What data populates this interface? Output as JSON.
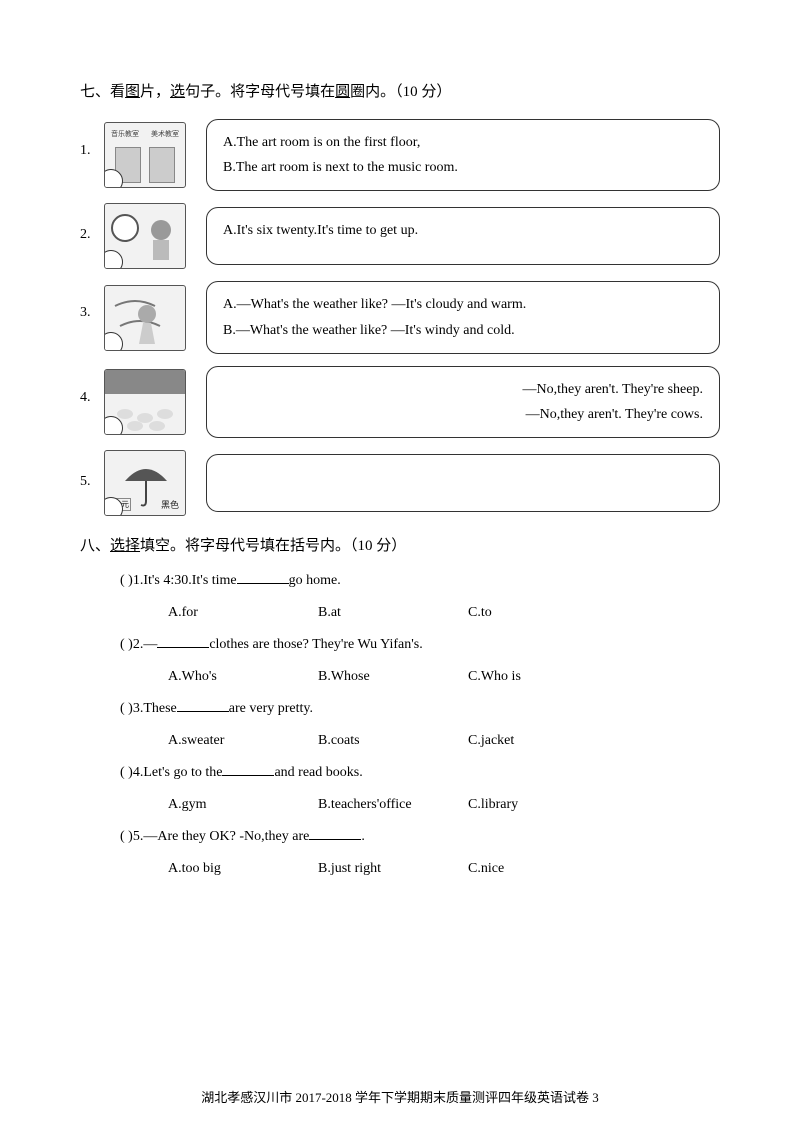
{
  "section7": {
    "title_prefix": "七、看",
    "title_u1": "图",
    "title_mid1": "片，",
    "title_u2": "选",
    "title_mid2": "句子。将字母代号填在",
    "title_u3": "圆",
    "title_mid3": "圈内。（10 分）",
    "items": [
      {
        "num": "1.",
        "image_labels": [
          "音乐教室",
          "美术教室"
        ],
        "lines": [
          "A.The art room is on the first floor,",
          "B.The art room is next to the music room."
        ]
      },
      {
        "num": "2.",
        "lines": [
          "A.It's six twenty.It's time to get up."
        ]
      },
      {
        "num": "3.",
        "lines": [
          "A.—What's the weather like?    —It's cloudy and warm.",
          "B.—What's the weather like?    —It's windy and cold."
        ]
      },
      {
        "num": "4.",
        "lines": [
          "—No,they aren't. They're sheep.",
          "—No,they aren't. They're cows."
        ],
        "align": "right"
      },
      {
        "num": "5.",
        "image_price": "18元",
        "image_color": "黑色",
        "lines": [
          ""
        ]
      }
    ]
  },
  "section8": {
    "title_prefix": "八、",
    "title_u1": "选择",
    "title_rest": "填空。将字母代号填在括号内。（10 分）",
    "items": [
      {
        "bracket": "(        )",
        "q_pre": "1.It's 4:30.It's time",
        "q_post": "go home.",
        "opts": [
          "A.for",
          "B.at",
          "C.to"
        ]
      },
      {
        "bracket": "(        )",
        "q_pre": "2.—",
        "q_post": "clothes are those?   They're Wu Yifan's.",
        "opts": [
          "A.Who's",
          "B.Whose",
          "C.Who is"
        ]
      },
      {
        "bracket": "(        )",
        "q_pre": "3.These",
        "q_post": "are very pretty.",
        "opts": [
          "A.sweater",
          "B.coats",
          "C.jacket"
        ]
      },
      {
        "bracket": "(        )",
        "q_pre": "4.Let's go to the",
        "q_post": "and read books.",
        "opts": [
          "A.gym",
          "B.teachers'office",
          "C.library"
        ]
      },
      {
        "bracket": "(        )",
        "q_pre": "5.—Are they OK?   -No,they are",
        "q_post": ".",
        "opts": [
          "A.too big",
          "B.just right",
          "C.nice"
        ]
      }
    ]
  },
  "footer": "湖北孝感汉川市 2017-2018 学年下学期期末质量测评四年级英语试卷  3"
}
